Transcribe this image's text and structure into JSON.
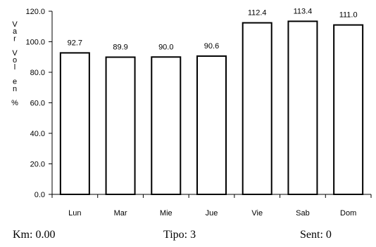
{
  "chart_data": {
    "type": "bar",
    "categories": [
      "Lun",
      "Mar",
      "Mie",
      "Jue",
      "Vie",
      "Sab",
      "Dom"
    ],
    "values": [
      92.7,
      89.9,
      90.0,
      90.6,
      112.4,
      113.4,
      111.0
    ],
    "data_labels": [
      "92.7",
      "89.9",
      "90.0",
      "90.6",
      "112.4",
      "113.4",
      "111.0"
    ],
    "title": "",
    "xlabel": "",
    "ylabel": "Var Vol en %",
    "ylim": [
      0,
      120
    ],
    "yticks": [
      0,
      20,
      40,
      60,
      80,
      100,
      120
    ],
    "ytick_labels": [
      "0.0",
      "20.0",
      "40.0",
      "60.0",
      "80.0",
      "100.0",
      "120.0"
    ],
    "grid": false,
    "legend": "none",
    "bar_fill": "#ffffff",
    "bar_stroke": "#000000"
  },
  "footer": {
    "km": "Km: 0.00",
    "tipo": "Tipo: 3",
    "sent": "Sent: 0"
  }
}
